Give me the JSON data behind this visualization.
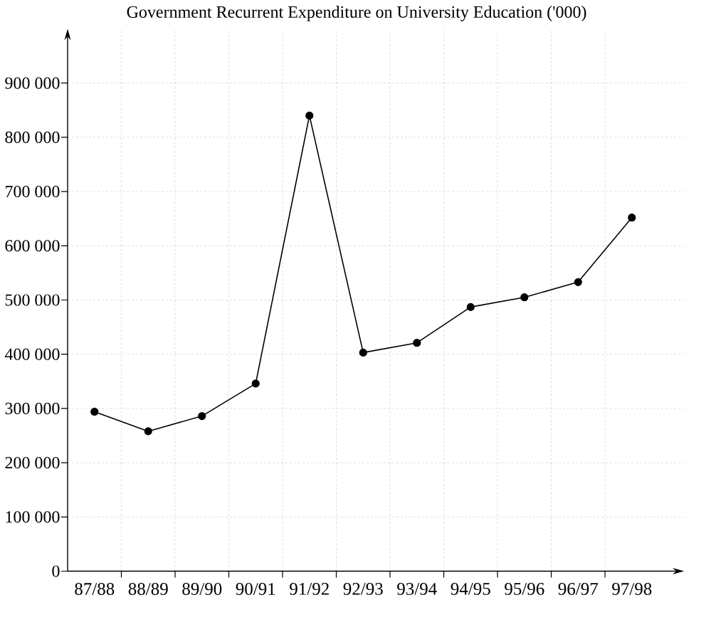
{
  "chart_data": {
    "type": "line",
    "title": "Government Recurrent Expenditure on University Education ('000)",
    "categories": [
      "87/88",
      "88/89",
      "89/90",
      "90/91",
      "91/92",
      "92/93",
      "93/94",
      "94/95",
      "95/96",
      "96/97",
      "97/98"
    ],
    "series": [
      {
        "color": "#000000",
        "values": [
          294000,
          258000,
          286000,
          346000,
          840000,
          403000,
          421000,
          487000,
          505000,
          533000,
          652000
        ]
      }
    ],
    "ylim": [
      0,
      1000000
    ],
    "yticks": [
      0,
      {
        "value": 100000,
        "label": "100 000"
      },
      {
        "value": 200000,
        "label": "200 000"
      },
      {
        "value": 300000,
        "label": "300 000"
      },
      {
        "value": 400000,
        "label": "400 000"
      },
      {
        "value": 500000,
        "label": "500 000"
      },
      {
        "value": 600000,
        "label": "600 000"
      },
      {
        "value": 700000,
        "label": "700 000"
      },
      {
        "value": 800000,
        "label": "800 000"
      },
      {
        "value": 900000,
        "label": "900 000"
      }
    ],
    "grid": true,
    "marker": "circle",
    "line_style": "solid"
  }
}
